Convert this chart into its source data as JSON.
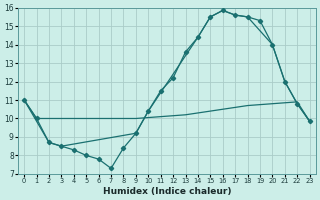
{
  "xlabel": "Humidex (Indice chaleur)",
  "bg_color": "#cceee8",
  "grid_color": "#aaccc8",
  "line_color": "#1a7070",
  "xlim_min": -0.5,
  "xlim_max": 23.5,
  "ylim_min": 7,
  "ylim_max": 16,
  "xticks": [
    0,
    1,
    2,
    3,
    4,
    5,
    6,
    7,
    8,
    9,
    10,
    11,
    12,
    13,
    14,
    15,
    16,
    17,
    18,
    19,
    20,
    21,
    22,
    23
  ],
  "yticks": [
    7,
    8,
    9,
    10,
    11,
    12,
    13,
    14,
    15,
    16
  ],
  "line1_x": [
    0,
    1,
    2,
    3,
    4,
    5,
    6,
    7,
    8,
    9,
    10,
    11,
    12,
    13,
    14,
    15,
    16,
    17,
    18,
    19,
    20,
    21,
    22,
    23
  ],
  "line1_y": [
    11.0,
    10.0,
    8.7,
    8.5,
    8.3,
    8.0,
    7.8,
    7.3,
    8.4,
    9.2,
    10.4,
    11.5,
    12.2,
    13.6,
    14.4,
    15.5,
    15.85,
    15.6,
    15.5,
    15.3,
    14.0,
    12.0,
    10.8,
    9.85
  ],
  "line2_x": [
    0,
    1,
    2,
    3,
    4,
    5,
    6,
    7,
    8,
    9,
    10,
    11,
    12,
    13,
    14,
    15,
    16,
    17,
    18,
    19,
    20,
    21,
    22,
    23
  ],
  "line2_y": [
    11.0,
    10.0,
    10.0,
    10.0,
    10.0,
    10.0,
    10.0,
    10.0,
    10.0,
    10.0,
    10.05,
    10.1,
    10.15,
    10.2,
    10.3,
    10.4,
    10.5,
    10.6,
    10.7,
    10.75,
    10.8,
    10.85,
    10.9,
    9.85
  ],
  "line3_x": [
    0,
    2,
    3,
    9,
    10,
    14,
    15,
    16,
    17,
    18,
    20,
    21,
    22,
    23
  ],
  "line3_y": [
    11.0,
    8.7,
    8.5,
    9.2,
    10.4,
    14.4,
    15.5,
    15.85,
    15.6,
    15.5,
    14.0,
    12.0,
    10.8,
    9.85
  ]
}
